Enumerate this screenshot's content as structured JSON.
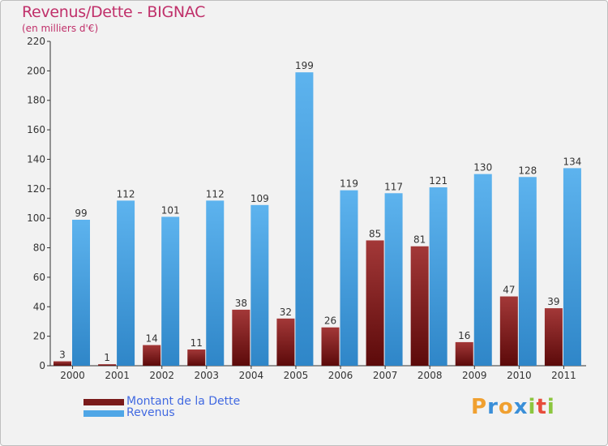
{
  "title": "Revenus/Dette - BIGNAC",
  "subtitle": "(en milliers d'€)",
  "colors": {
    "debt": "#7a1a1a",
    "revenue": "#4fa6e6",
    "title": "#c0306a",
    "legend_text": "#4169e1"
  },
  "legend": {
    "debt_label": "Montant de la Dette",
    "revenue_label": "Revenus"
  },
  "logo": {
    "text": "Proxiti",
    "letters": [
      "P",
      "r",
      "o",
      "x",
      "i",
      "t",
      "i"
    ],
    "letter_colors": [
      "#f0a030",
      "#3a8fd8",
      "#f0a030",
      "#3a8fd8",
      "#8cc63f",
      "#e74c3c",
      "#8cc63f"
    ]
  },
  "chart_data": {
    "type": "bar",
    "categories": [
      "2000",
      "2001",
      "2002",
      "2003",
      "2004",
      "2005",
      "2006",
      "2007",
      "2008",
      "2009",
      "2010",
      "2011"
    ],
    "series": [
      {
        "name": "Montant de la Dette",
        "values": [
          3,
          1,
          14,
          11,
          38,
          32,
          26,
          85,
          81,
          16,
          47,
          39
        ]
      },
      {
        "name": "Revenus",
        "values": [
          99,
          112,
          101,
          112,
          109,
          199,
          119,
          117,
          121,
          130,
          128,
          134
        ]
      }
    ],
    "ylim": [
      0,
      220
    ],
    "yticks": [
      0,
      20,
      40,
      60,
      80,
      100,
      120,
      140,
      160,
      180,
      200,
      220
    ],
    "grid": false,
    "legend_position": "bottom-left"
  }
}
